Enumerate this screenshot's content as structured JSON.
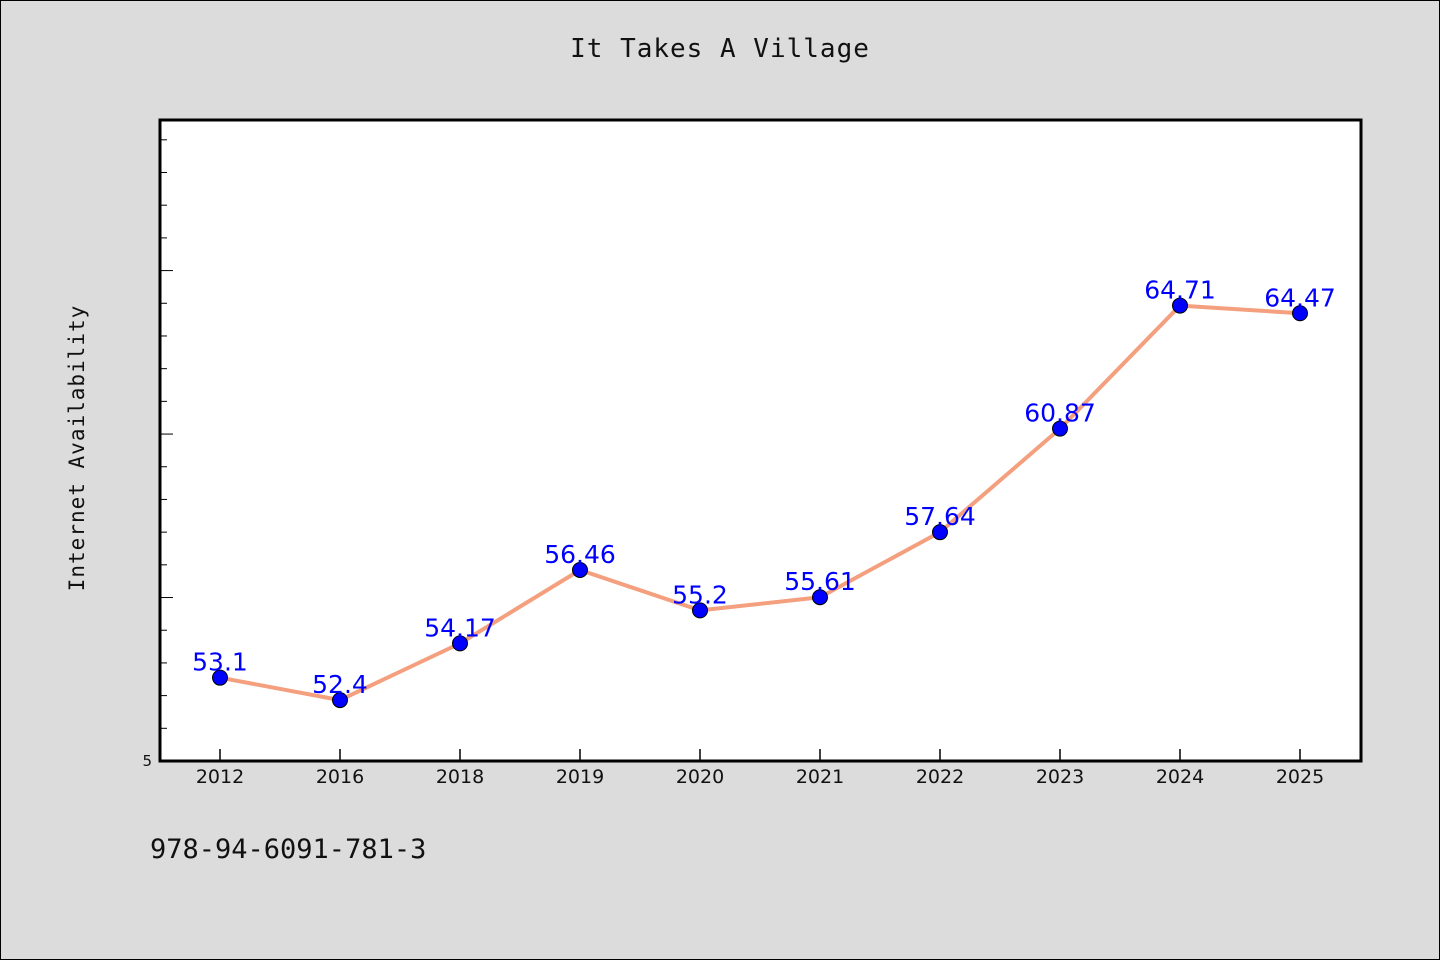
{
  "title": "It Takes A Village",
  "footer_code": "978-94-6091-781-3",
  "chart_data": {
    "type": "line",
    "title": "It Takes A Village",
    "xlabel": "",
    "ylabel": "Internet Availability",
    "categories": [
      "2012",
      "2016",
      "2018",
      "2019",
      "2020",
      "2021",
      "2022",
      "2023",
      "2024",
      "2025"
    ],
    "series": [
      {
        "values": [
          53.1,
          52.4,
          54.17,
          56.46,
          55.2,
          55.61,
          57.64,
          60.87,
          64.71,
          64.47
        ]
      }
    ],
    "data_labels": [
      "53.1",
      "52.4",
      "54.17",
      "56.46",
      "55.2",
      "55.61",
      "57.64",
      "60.87",
      "64.71",
      "64.47"
    ],
    "y_tick_label": "5",
    "ylim": [
      50.5,
      70.5
    ],
    "grid": false,
    "line_color": "#f4a07f",
    "marker_color": "#0000ff",
    "label_color": "#0000ff"
  }
}
